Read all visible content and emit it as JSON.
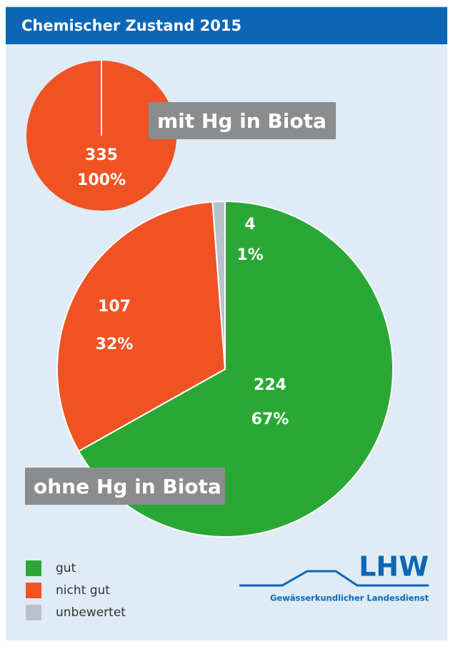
{
  "title": "Chemischer Zustand 2015",
  "chart_data": [
    {
      "type": "pie",
      "label": "mit Hg in Biota",
      "categories": [
        "nicht gut"
      ],
      "colors": [
        "#ef5323"
      ],
      "values": [
        335
      ],
      "percents": [
        100
      ],
      "percent_labels": [
        "100%"
      ]
    },
    {
      "type": "pie",
      "label": "ohne Hg in Biota",
      "categories": [
        "gut",
        "nicht gut",
        "unbewertet"
      ],
      "colors": [
        "#2aa836",
        "#ef5323",
        "#b9c2cb"
      ],
      "values": [
        224,
        107,
        4
      ],
      "percents": [
        67,
        32,
        1
      ],
      "percent_labels": [
        "67%",
        "32%",
        "1%"
      ]
    }
  ],
  "legend": [
    {
      "name": "gut",
      "color": "#2aa836"
    },
    {
      "name": "nicht gut",
      "color": "#ef5323"
    },
    {
      "name": "unbewertet",
      "color": "#b9c2cb"
    }
  ],
  "logo": {
    "name": "LHW",
    "subtitle": "Gewässerkundlicher Landesdienst"
  }
}
